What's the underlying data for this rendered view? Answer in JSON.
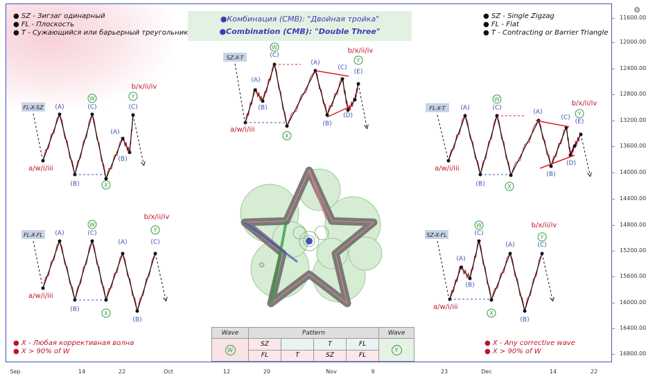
{
  "legend_ru": [
    "● SZ - Зигзаг одинарный",
    "● FL - Плоскость",
    "● T - Сужающийся или барьерный треугольник"
  ],
  "legend_en": [
    "● SZ - Single Zigzag",
    "● FL - Flat",
    "● T - Contracting or Barrier Triangle"
  ],
  "title_ru": "●Комбинация (СМВ): \"Двойная тройка\"",
  "title_en": "●Combination (CMB): \"Double Three\"",
  "notes_ru": [
    "● X - Любая коррективная волна",
    "● X > 90% of W"
  ],
  "notes_en": [
    "● X - Any corrective wave",
    "● X > 90% of W"
  ],
  "patterns": {
    "fl_x_sz": {
      "tag": "FL-X-SZ",
      "start": "a/w/i/iii",
      "end": "b/x/ii/iv"
    },
    "sz_x_t": {
      "tag": "SZ-X-T",
      "start": "a/w/i/iii",
      "end": "b/x/ii/iv"
    },
    "fl_x_t": {
      "tag": "FL-X-T",
      "start": "a/w/i/iii",
      "end": "b/x/ii/iv"
    },
    "fl_x_fl": {
      "tag": "FL-X-FL",
      "start": "a/w/i/iii",
      "end": "b/x/ii/iv"
    },
    "sz_x_fl": {
      "tag": "SZ-X-FL",
      "start": "a/w/i/iii",
      "end": "b/x/ii/iv"
    }
  },
  "wave_labels": {
    "A": "(A)",
    "B": "(B)",
    "C": "(C)",
    "D": "(D)",
    "E": "(E)",
    "W": "W",
    "X": "X",
    "Y": "Y"
  },
  "table": {
    "wave_header_left": "Wave",
    "pattern_header": "Pattern",
    "wave_header_right": "Wave",
    "wave_left": "W",
    "wave_right": "Y",
    "row1": [
      "SZ",
      "",
      "T",
      "FL"
    ],
    "row2": [
      "FL",
      "T",
      "SZ",
      "FL"
    ]
  },
  "y_axis": [
    "11600.00",
    "12000.00",
    "12400.00",
    "12800.00",
    "13200.00",
    "13600.00",
    "14000.00",
    "14400.00",
    "14800.00",
    "15200.00",
    "15600.00",
    "16000.00",
    "16400.00",
    "16800.00"
  ],
  "x_axis": [
    "Sep",
    "14",
    "22",
    "Oct",
    "12",
    "20",
    "Nov",
    "9",
    "23",
    "Dec",
    "14",
    "22"
  ],
  "settings_icon": "gear-icon"
}
